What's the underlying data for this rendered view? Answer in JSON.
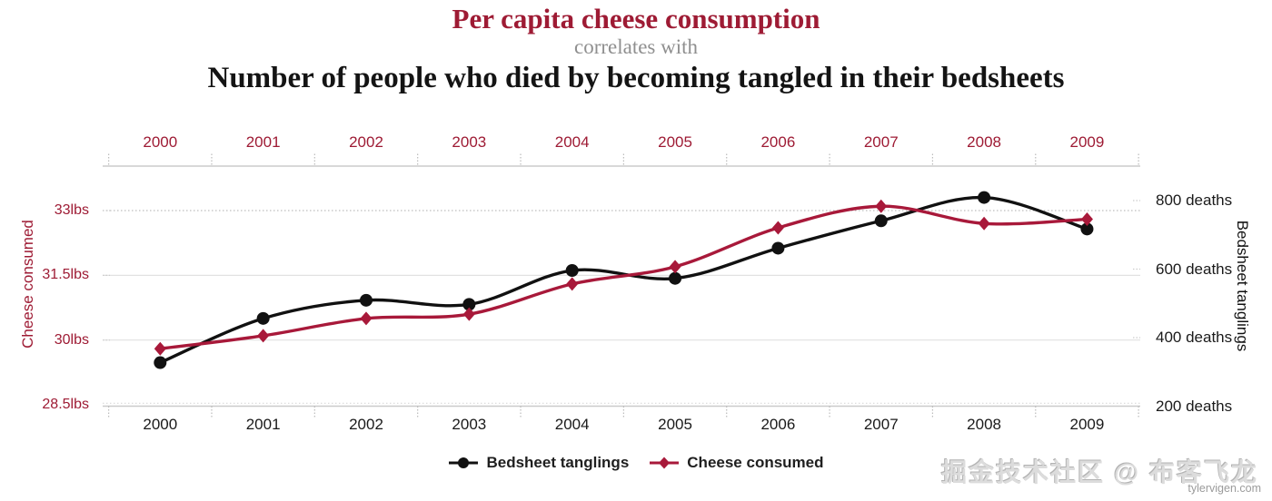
{
  "header": {
    "title": "Per capita cheese consumption",
    "connector": "correlates with",
    "subtitle": "Number of people who died by becoming tangled in their bedsheets"
  },
  "chart_data": {
    "type": "line",
    "x": [
      2000,
      2001,
      2002,
      2003,
      2004,
      2005,
      2006,
      2007,
      2008,
      2009
    ],
    "series": [
      {
        "name": "Bedsheet tanglings",
        "axis": "right",
        "marker": "circle",
        "color": "#111111",
        "values": [
          327,
          456,
          509,
          497,
          596,
          573,
          661,
          741,
          809,
          717
        ]
      },
      {
        "name": "Cheese consumed",
        "axis": "left",
        "marker": "diamond",
        "color": "#a8193a",
        "values": [
          29.8,
          30.1,
          30.5,
          30.6,
          31.3,
          31.7,
          32.6,
          33.1,
          32.7,
          32.8
        ]
      }
    ],
    "left_axis": {
      "title": "Cheese consumed",
      "unit": "lbs",
      "tick_labels": [
        "33lbs",
        "31.5lbs",
        "30lbs",
        "28.5lbs"
      ],
      "tick_values": [
        33,
        31.5,
        30,
        28.5
      ],
      "range": [
        28.45,
        33.95
      ]
    },
    "right_axis": {
      "title": "Bedsheet tanglings",
      "unit": "deaths",
      "tick_labels": [
        "800 deaths",
        "600 deaths",
        "400 deaths",
        "200 deaths"
      ],
      "tick_values": [
        800,
        600,
        400,
        200
      ],
      "range": [
        200,
        890
      ]
    },
    "legend": [
      "Bedsheet tanglings",
      "Cheese consumed"
    ],
    "legend_position": "bottom-center",
    "grid": true
  },
  "colors": {
    "accent_red_text": "#9e1b34",
    "line_red": "#a8193a",
    "line_black": "#111111",
    "axis_gray": "#cbcbcb",
    "grid_solid": "#e1e1e1",
    "grid_dotted": "#bdbdbd",
    "subtitle_gray": "#8f8f8f"
  },
  "footer": {
    "watermark": "掘金技术社区 @ 布客飞龙",
    "site": "tylervigen.com"
  }
}
